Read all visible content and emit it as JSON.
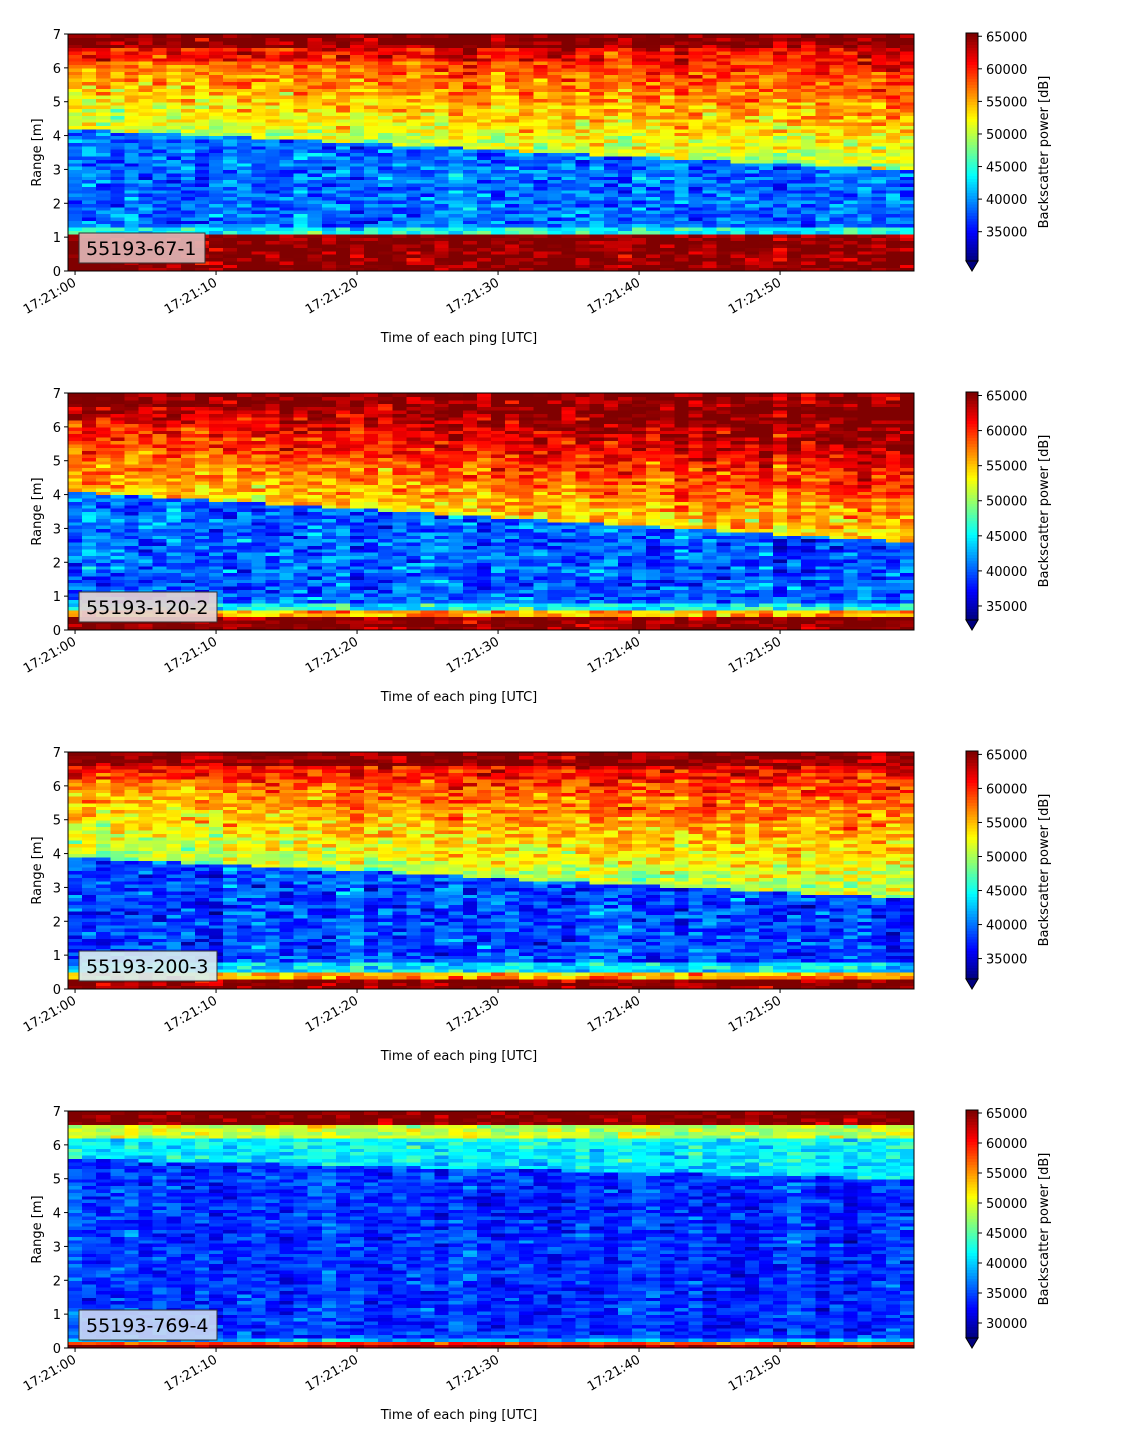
{
  "chart_data": [
    {
      "type": "heatmap",
      "label": "55193-67-1",
      "label_box_color": "#e0b4b4",
      "xlabel": "Time of each ping [UTC]",
      "ylabel": "Range [m]",
      "ylim": [
        0,
        7
      ],
      "yticks": [
        "0",
        "1",
        "2",
        "3",
        "4",
        "5",
        "6",
        "7"
      ],
      "xticks": [
        "17:21:00",
        "17:21:10",
        "17:21:20",
        "17:21:30",
        "17:21:40",
        "17:21:50"
      ],
      "xlim_seconds": [
        -0.5,
        59.5
      ],
      "colorbar": {
        "label": "Backscatter power [dB]",
        "range": [
          30500,
          65500
        ],
        "ticks": [
          "35000",
          "40000",
          "45000",
          "50000",
          "55000",
          "60000",
          "65000"
        ],
        "extend": "min",
        "colormap": "jet"
      },
      "profile": {
        "layer_top_start": 4.2,
        "layer_top_end": 3.0,
        "layer_bottom_start": 1.3,
        "layer_bottom_end": 1.3,
        "layer_value": 38500,
        "above_base": 50000,
        "above_gradient": 3500,
        "near_top_value": 61000,
        "top_value": 65500,
        "bottom_band_top": 1.1,
        "bottom_band_value": 65500,
        "floor_top": 0.0,
        "floor_value": 65500,
        "noise": 3500
      }
    },
    {
      "type": "heatmap",
      "label": "55193-120-2",
      "label_box_color": "#e6d3d3",
      "xlabel": "Time of each ping [UTC]",
      "ylabel": "Range [m]",
      "ylim": [
        0,
        7
      ],
      "yticks": [
        "0",
        "1",
        "2",
        "3",
        "4",
        "5",
        "6",
        "7"
      ],
      "xticks": [
        "17:21:00",
        "17:21:10",
        "17:21:20",
        "17:21:30",
        "17:21:40",
        "17:21:50"
      ],
      "xlim_seconds": [
        -0.5,
        59.5
      ],
      "colorbar": {
        "label": "Backscatter power [dB]",
        "range": [
          33000,
          65500
        ],
        "ticks": [
          "35000",
          "40000",
          "45000",
          "50000",
          "55000",
          "60000",
          "65000"
        ],
        "extend": "min",
        "colormap": "jet"
      },
      "profile": {
        "layer_top_start": 4.1,
        "layer_top_end": 2.6,
        "layer_bottom_start": 0.8,
        "layer_bottom_end": 0.8,
        "layer_value": 40000,
        "above_base": 54000,
        "above_gradient": 3500,
        "near_top_value": 61000,
        "top_value": 65500,
        "bottom_band_top": 0.6,
        "bottom_band_value": 56000,
        "floor_top": 0.45,
        "floor_value": 65500,
        "noise": 3500
      }
    },
    {
      "type": "heatmap",
      "label": "55193-200-3",
      "label_box_color": "#d8ecf0",
      "xlabel": "Time of each ping [UTC]",
      "ylabel": "Range [m]",
      "ylim": [
        0,
        7
      ],
      "yticks": [
        "0",
        "1",
        "2",
        "3",
        "4",
        "5",
        "6",
        "7"
      ],
      "xticks": [
        "17:21:00",
        "17:21:10",
        "17:21:20",
        "17:21:30",
        "17:21:40",
        "17:21:50"
      ],
      "xlim_seconds": [
        -0.5,
        59.5
      ],
      "colorbar": {
        "label": "Backscatter power [dB]",
        "range": [
          32000,
          65500
        ],
        "ticks": [
          "35000",
          "40000",
          "45000",
          "50000",
          "55000",
          "60000",
          "65000"
        ],
        "extend": "min",
        "colormap": "jet"
      },
      "profile": {
        "layer_top_start": 3.9,
        "layer_top_end": 2.7,
        "layer_bottom_start": 0.8,
        "layer_bottom_end": 0.8,
        "layer_value": 38500,
        "above_base": 50500,
        "above_gradient": 3000,
        "near_top_value": 60500,
        "top_value": 65500,
        "bottom_band_top": 0.55,
        "bottom_band_value": 56000,
        "floor_top": 0.35,
        "floor_value": 65500,
        "noise": 3500
      }
    },
    {
      "type": "heatmap",
      "label": "55193-769-4",
      "label_box_color": "#c8d8f4",
      "xlabel": "Time of each ping [UTC]",
      "ylabel": "Range [m]",
      "ylim": [
        0,
        7
      ],
      "yticks": [
        "0",
        "1",
        "2",
        "3",
        "4",
        "5",
        "6",
        "7"
      ],
      "xticks": [
        "17:21:00",
        "17:21:10",
        "17:21:20",
        "17:21:30",
        "17:21:40",
        "17:21:50"
      ],
      "xlim_seconds": [
        -0.5,
        59.5
      ],
      "colorbar": {
        "label": "Backscatter power [dB]",
        "range": [
          27500,
          65500
        ],
        "ticks": [
          "30000",
          "35000",
          "40000",
          "45000",
          "50000",
          "55000",
          "60000",
          "65000"
        ],
        "extend": "min",
        "colormap": "jet"
      },
      "profile": {
        "layer_top_start": 5.6,
        "layer_top_end": 5.0,
        "layer_bottom_start": 0.35,
        "layer_bottom_end": 0.35,
        "layer_value": 34000,
        "above_base": 40500,
        "above_gradient": 1500,
        "near_top_value": 49000,
        "top_value": 65500,
        "bottom_band_top": 0.2,
        "bottom_band_value": 58000,
        "floor_top": 0.1,
        "floor_value": 65500,
        "noise": 3000
      }
    }
  ]
}
